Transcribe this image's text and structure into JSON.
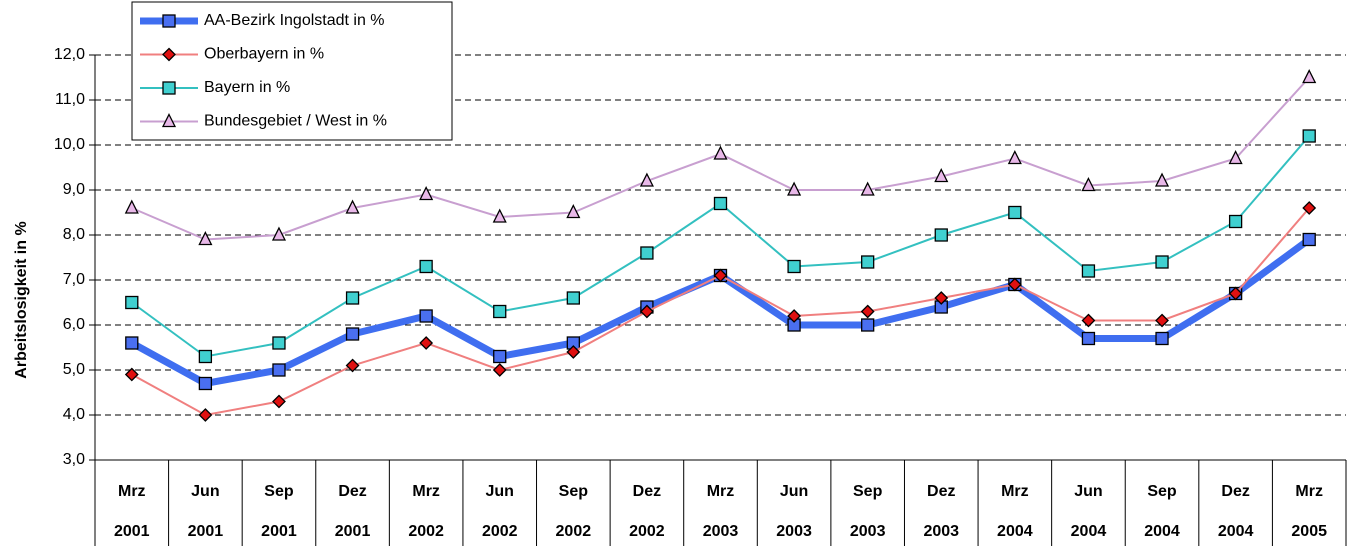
{
  "chart_data": {
    "type": "line",
    "y_label": "Arbeitslosigkeit in %",
    "categories": [
      [
        "Mrz",
        "2001"
      ],
      [
        "Jun",
        "2001"
      ],
      [
        "Sep",
        "2001"
      ],
      [
        "Dez",
        "2001"
      ],
      [
        "Mrz",
        "2002"
      ],
      [
        "Jun",
        "2002"
      ],
      [
        "Sep",
        "2002"
      ],
      [
        "Dez",
        "2002"
      ],
      [
        "Mrz",
        "2003"
      ],
      [
        "Jun",
        "2003"
      ],
      [
        "Sep",
        "2003"
      ],
      [
        "Dez",
        "2003"
      ],
      [
        "Mrz",
        "2004"
      ],
      [
        "Jun",
        "2004"
      ],
      [
        "Sep",
        "2004"
      ],
      [
        "Dez",
        "2004"
      ],
      [
        "Mrz",
        "2005"
      ]
    ],
    "series": [
      {
        "name": "AA-Bezirk Ingolstadt in %",
        "color": "#3f6ef0",
        "marker": "square",
        "marker_fill": "#4a6ff0",
        "values": [
          5.6,
          4.7,
          5.0,
          5.8,
          6.2,
          5.3,
          5.6,
          6.4,
          7.1,
          6.0,
          6.0,
          6.4,
          6.9,
          5.7,
          5.7,
          6.7,
          7.9
        ]
      },
      {
        "name": "Oberbayern in %",
        "color": "#f07f7f",
        "marker": "diamond",
        "marker_fill": "#e01010",
        "values": [
          4.9,
          4.0,
          4.3,
          5.1,
          5.6,
          5.0,
          5.4,
          6.3,
          7.1,
          6.2,
          6.3,
          6.6,
          6.9,
          6.1,
          6.1,
          6.7,
          8.6
        ]
      },
      {
        "name": "Bayern in %",
        "color": "#33c0c0",
        "marker": "square",
        "marker_fill": "#40d0d0",
        "values": [
          6.5,
          5.3,
          5.6,
          6.6,
          7.3,
          6.3,
          6.6,
          7.6,
          8.7,
          7.3,
          7.4,
          8.0,
          8.5,
          7.2,
          7.4,
          8.3,
          10.2
        ]
      },
      {
        "name": "Bundesgebiet / West in %",
        "color": "#c89fd0",
        "marker": "triangle",
        "marker_fill": "#e8b8e8",
        "values": [
          8.6,
          7.9,
          8.0,
          8.6,
          8.9,
          8.4,
          8.5,
          9.2,
          9.8,
          9.0,
          9.0,
          9.3,
          9.7,
          9.1,
          9.2,
          9.7,
          11.5
        ]
      }
    ],
    "ylim": [
      3,
      12
    ],
    "yticks": [
      {
        "value": 3,
        "label": "3,0"
      },
      {
        "value": 4,
        "label": "4,0"
      },
      {
        "value": 5,
        "label": "5,0"
      },
      {
        "value": 6,
        "label": "6,0"
      },
      {
        "value": 7,
        "label": "7,0"
      },
      {
        "value": 8,
        "label": "8,0"
      },
      {
        "value": 9,
        "label": "9,0"
      },
      {
        "value": 10,
        "label": "10,0"
      },
      {
        "value": 11,
        "label": "11,0"
      },
      {
        "value": 12,
        "label": "12,0"
      }
    ],
    "grid": true,
    "legend": "top-left"
  }
}
